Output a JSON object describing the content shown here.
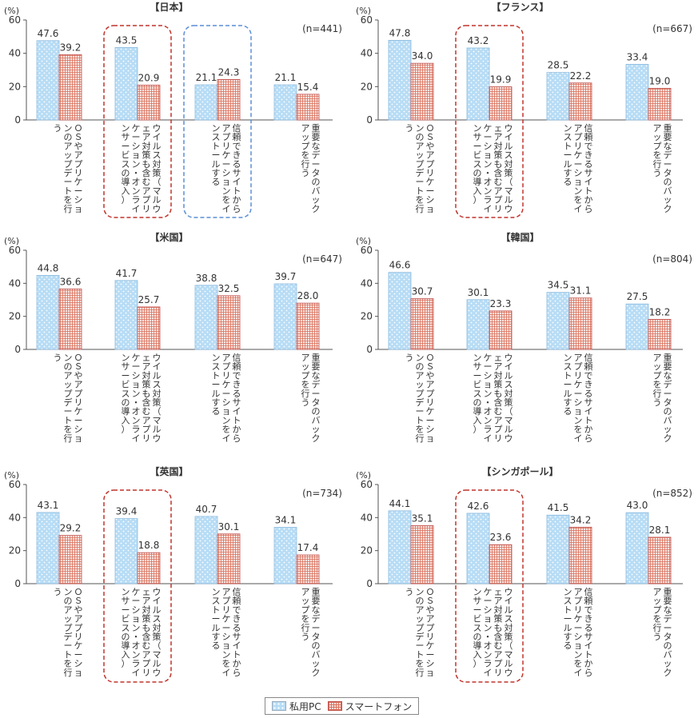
{
  "unit": "(%)",
  "legend": {
    "pc": "私用PC",
    "smartphone": "スマートフォン"
  },
  "colors": {
    "pc": "#b7dcf5",
    "smartphone": "#d9735f",
    "highlight_red": "#c0332b",
    "highlight_blue": "#5b8ed6"
  },
  "categories": [
    "ＯＳやアプリケーションのアップデートを行う",
    "ウイルス対策（マルウェア対策も含むアプリケーション・オンラインサービスの導入）",
    "信頼できるサイトからアプリケーションをインストールする",
    "重要なデータのバックアップを行う"
  ],
  "chart_data": [
    {
      "type": "bar",
      "title": "【日本】",
      "n": "(n=441)",
      "ylim": [
        0,
        60
      ],
      "yticks": [
        "0",
        "20",
        "40",
        "60"
      ],
      "series": [
        {
          "name": "私用PC",
          "values": [
            47.6,
            43.5,
            21.1,
            21.1
          ]
        },
        {
          "name": "スマートフォン",
          "values": [
            39.2,
            20.9,
            24.3,
            15.4
          ]
        }
      ],
      "highlights": [
        {
          "category": 1,
          "color": "red"
        },
        {
          "category": 2,
          "color": "blue"
        }
      ]
    },
    {
      "type": "bar",
      "title": "【フランス】",
      "n": "(n=667)",
      "ylim": [
        0,
        60
      ],
      "yticks": [
        "0",
        "20",
        "40",
        "60"
      ],
      "series": [
        {
          "name": "私用PC",
          "values": [
            47.8,
            43.2,
            28.5,
            33.4
          ]
        },
        {
          "name": "スマートフォン",
          "values": [
            34.0,
            19.9,
            22.2,
            19.0
          ]
        }
      ],
      "highlights": [
        {
          "category": 1,
          "color": "red"
        }
      ]
    },
    {
      "type": "bar",
      "title": "【米国】",
      "n": "(n=647)",
      "ylim": [
        0,
        60
      ],
      "yticks": [
        "0",
        "20",
        "40",
        "60"
      ],
      "series": [
        {
          "name": "私用PC",
          "values": [
            44.8,
            41.7,
            38.8,
            39.7
          ]
        },
        {
          "name": "スマートフォン",
          "values": [
            36.6,
            25.7,
            32.5,
            28.0
          ]
        }
      ],
      "highlights": []
    },
    {
      "type": "bar",
      "title": "【韓国】",
      "n": "(n=804)",
      "ylim": [
        0,
        60
      ],
      "yticks": [
        "0",
        "20",
        "40",
        "60"
      ],
      "series": [
        {
          "name": "私用PC",
          "values": [
            46.6,
            30.1,
            34.5,
            27.5
          ]
        },
        {
          "name": "スマートフォン",
          "values": [
            30.7,
            23.3,
            31.1,
            18.2
          ]
        }
      ],
      "highlights": []
    },
    {
      "type": "bar",
      "title": "【英国】",
      "n": "(n=734)",
      "ylim": [
        0,
        60
      ],
      "yticks": [
        "0",
        "20",
        "40",
        "60"
      ],
      "series": [
        {
          "name": "私用PC",
          "values": [
            43.1,
            39.4,
            40.7,
            34.1
          ]
        },
        {
          "name": "スマートフォン",
          "values": [
            29.2,
            18.8,
            30.1,
            17.4
          ]
        }
      ],
      "highlights": [
        {
          "category": 1,
          "color": "red"
        }
      ]
    },
    {
      "type": "bar",
      "title": "【シンガポール】",
      "n": "(n=852)",
      "ylim": [
        0,
        60
      ],
      "yticks": [
        "0",
        "20",
        "40",
        "60"
      ],
      "series": [
        {
          "name": "私用PC",
          "values": [
            44.1,
            42.6,
            41.5,
            43.0
          ]
        },
        {
          "name": "スマートフォン",
          "values": [
            35.1,
            23.6,
            34.2,
            28.1
          ]
        }
      ],
      "highlights": [
        {
          "category": 1,
          "color": "red"
        }
      ]
    }
  ]
}
